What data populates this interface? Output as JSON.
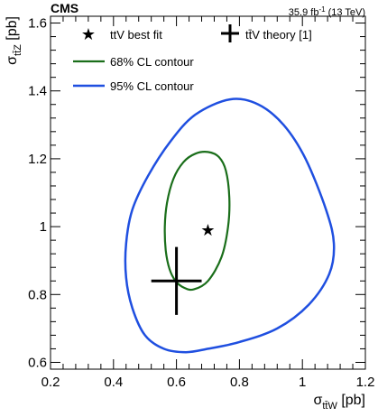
{
  "chart_data": {
    "type": "scatter",
    "experiment": "CMS",
    "luminosity": "35.9 fb",
    "luminosity_sup": "-1",
    "energy": "(13 TeV)",
    "xlabel": {
      "main": "σ",
      "sub": "tt̄W",
      "unit": "[pb]"
    },
    "ylabel": {
      "main": "σ",
      "sub": "tt̄Z",
      "unit": "[pb]"
    },
    "xlim": [
      0.2,
      1.2
    ],
    "ylim": [
      0.58,
      1.62
    ],
    "x_ticks": [
      "0.2",
      "0.4",
      "0.6",
      "0.8",
      "1",
      "1.2"
    ],
    "y_ticks": [
      "0.6",
      "0.8",
      "1",
      "1.2",
      "1.4",
      "1.6"
    ],
    "x_tick_values": [
      0.2,
      0.4,
      0.6,
      0.8,
      1.0,
      1.2
    ],
    "y_tick_values": [
      0.6,
      0.8,
      1.0,
      1.2,
      1.4,
      1.6
    ],
    "colors": {
      "c68": "#1a6e1a",
      "c95": "#1f4fe0",
      "axis": "#000000"
    },
    "best_fit": {
      "label": "ttV best fit",
      "x": 0.7,
      "y": 0.99
    },
    "theory": {
      "label": "tt̄V theory [1]",
      "x": 0.6,
      "y": 0.84,
      "x_err": [
        0.52,
        0.68
      ],
      "y_err": [
        0.74,
        0.94
      ]
    },
    "series": [
      {
        "name": "68% CL contour",
        "color": "#1a6e1a",
        "x": [
          0.7,
          0.735,
          0.757,
          0.768,
          0.764,
          0.743,
          0.7,
          0.655,
          0.624,
          0.597,
          0.578,
          0.566,
          0.563,
          0.57,
          0.59,
          0.622,
          0.66,
          0.7
        ],
        "y": [
          1.22,
          1.205,
          1.165,
          1.085,
          1.0,
          0.91,
          0.84,
          0.815,
          0.82,
          0.84,
          0.875,
          0.93,
          1.0,
          1.07,
          1.14,
          1.19,
          1.215,
          1.22
        ]
      },
      {
        "name": "95% CL contour",
        "color": "#1f4fe0",
        "x": [
          0.77,
          0.86,
          0.94,
          1.01,
          1.075,
          1.1,
          1.085,
          1.02,
          0.92,
          0.8,
          0.7,
          0.63,
          0.56,
          0.5,
          0.46,
          0.44,
          0.44,
          0.46,
          0.51,
          0.58,
          0.66,
          0.77
        ],
        "y": [
          1.375,
          1.36,
          1.3,
          1.2,
          1.05,
          0.95,
          0.86,
          0.77,
          0.7,
          0.66,
          0.64,
          0.63,
          0.64,
          0.68,
          0.76,
          0.85,
          0.95,
          1.05,
          1.15,
          1.25,
          1.33,
          1.375
        ]
      }
    ],
    "legend": [
      {
        "key": "best_fit",
        "label": "ttV best fit"
      },
      {
        "key": "theory",
        "label": "tt̄V theory [1]"
      },
      {
        "key": "c68",
        "label": "68% CL contour"
      },
      {
        "key": "c95",
        "label": "95% CL contour"
      }
    ]
  }
}
